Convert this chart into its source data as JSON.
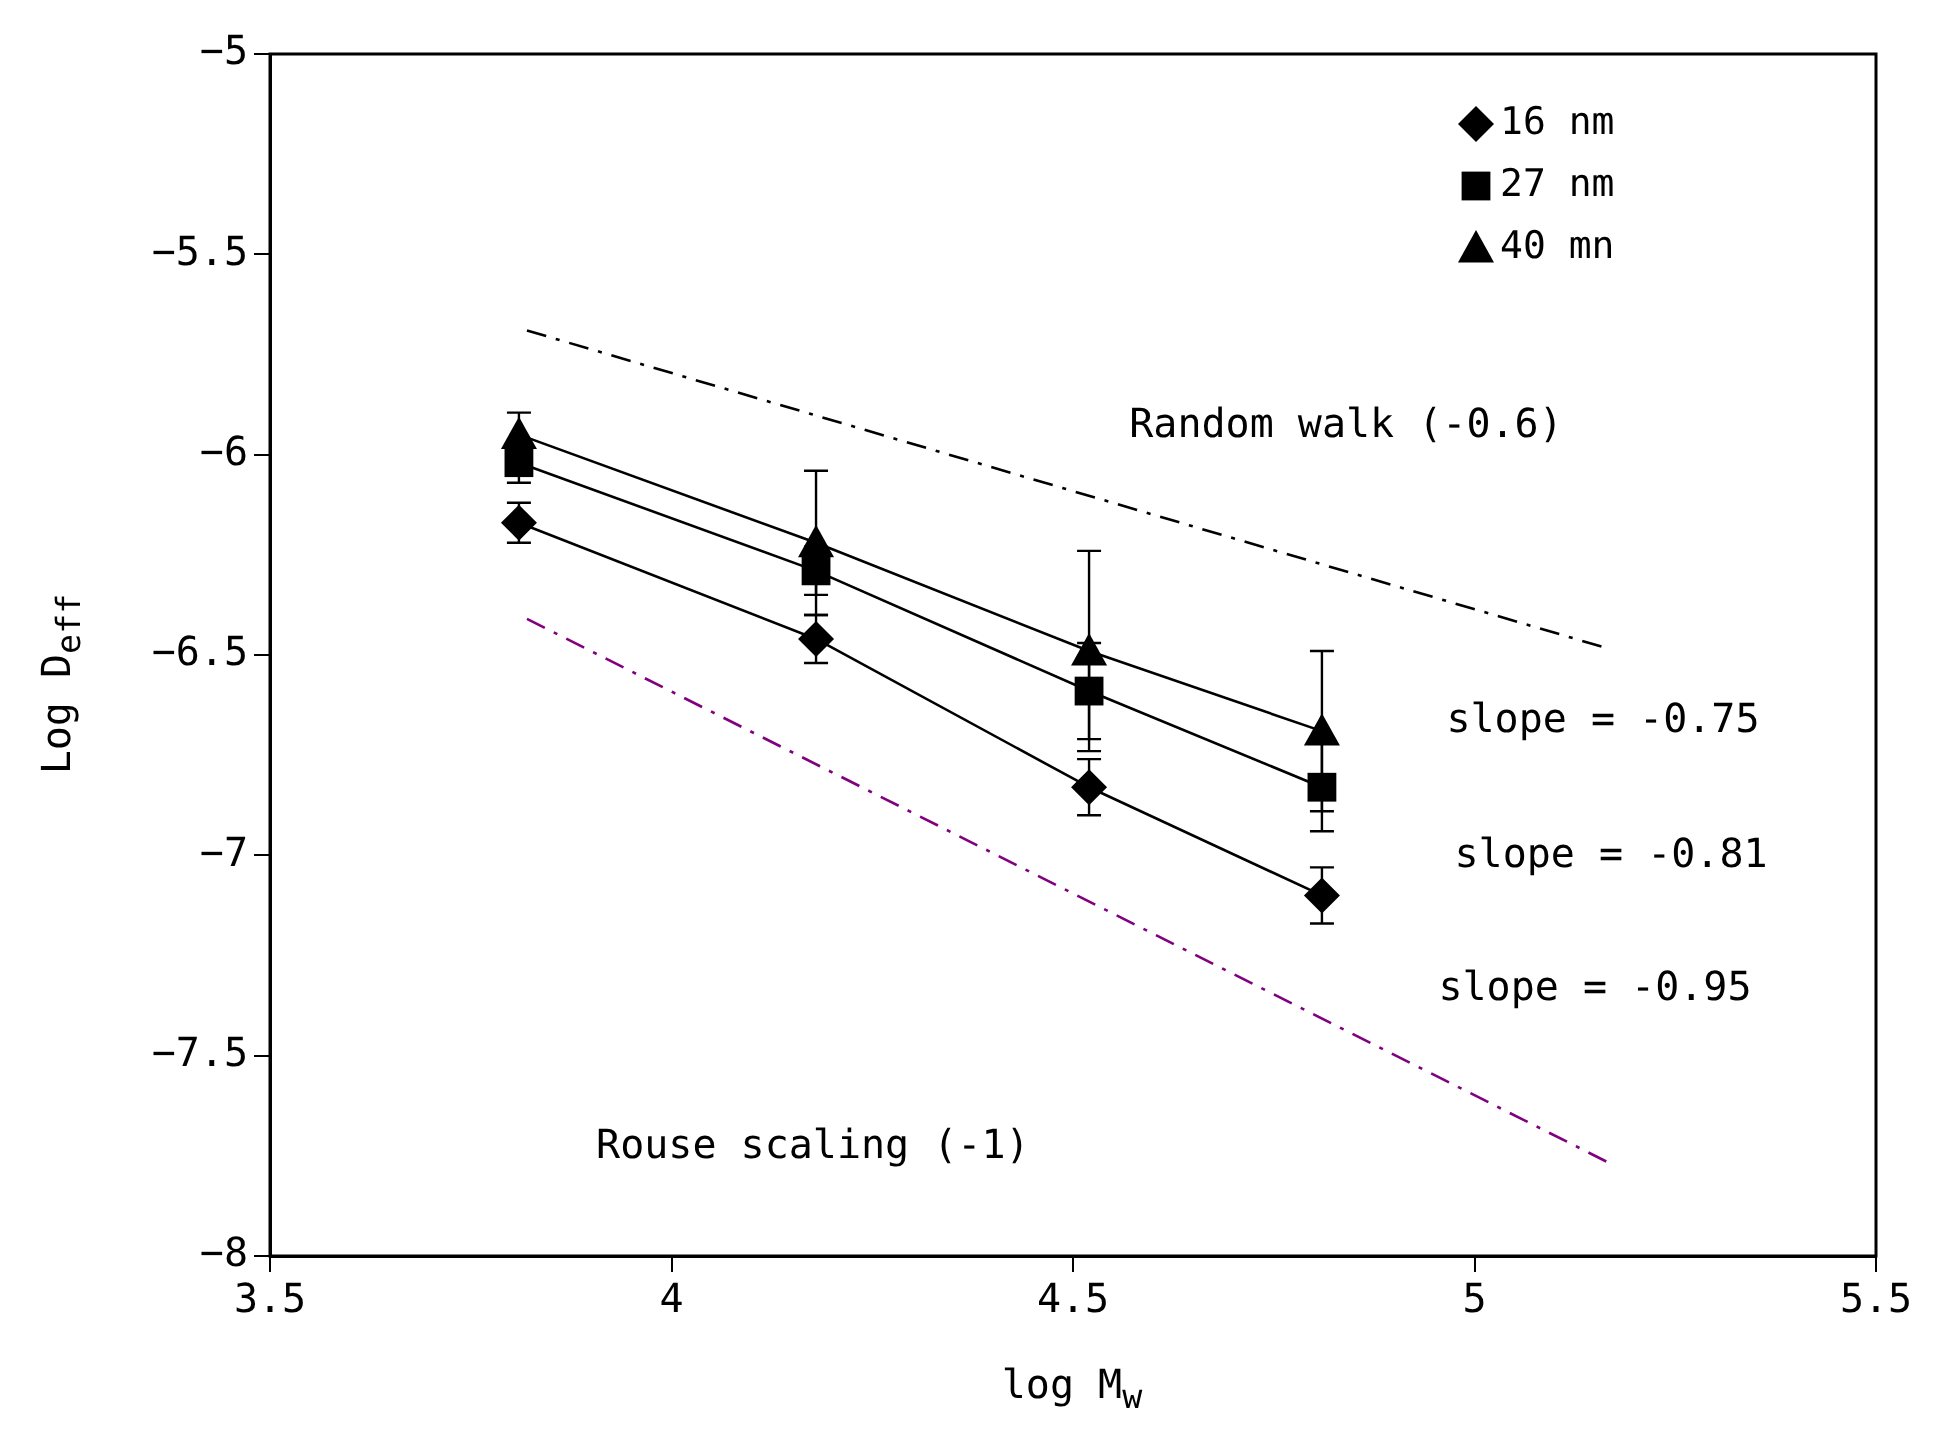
{
  "chart_data": {
    "type": "line",
    "xlabel": "log M$_{w}$",
    "ylabel": "Log D$_{eff}$",
    "xlim": [
      3.5,
      5.5
    ],
    "xticks": [
      3.5,
      4,
      4.5,
      5,
      5.5
    ],
    "ylim": [
      -8,
      -5
    ],
    "yticks": [
      -8,
      -7.5,
      -7,
      -6.5,
      -6,
      -5.5,
      -5
    ],
    "grid": false,
    "legend": "top right",
    "series": [
      {
        "name": "16 nm",
        "color": "#000000",
        "marker": "diamond",
        "x": [
          3.81,
          4.18,
          4.52,
          4.81
        ],
        "values": [
          -6.17,
          -6.46,
          -6.83,
          -7.1
        ],
        "errors": [
          0.05,
          0.06,
          0.07,
          0.07
        ]
      },
      {
        "name": "27 nm",
        "color": "#000000",
        "marker": "square",
        "x": [
          3.81,
          4.18,
          4.52,
          4.81
        ],
        "values": [
          -6.02,
          -6.29,
          -6.59,
          -6.83
        ],
        "errors": [
          0.05,
          0.06,
          0.12,
          0.11
        ]
      },
      {
        "name": "40 mn",
        "color": "#000000",
        "marker": "triangle",
        "x": [
          3.81,
          4.18,
          4.52,
          4.81
        ],
        "values": [
          -5.95,
          -6.22,
          -6.49,
          -6.69
        ],
        "errors": [
          0.055,
          0.18,
          0.25,
          0.2
        ]
      },
      {
        "type": "line",
        "color": "#000000",
        "marker": "none",
        "line_style": "dashed",
        "x": [
          3.82,
          5.16
        ],
        "values": [
          -5.69,
          -6.48
        ]
      },
      {
        "type": "line",
        "color": "#800080",
        "marker": "none",
        "line_style": "dashed",
        "x": [
          3.82,
          5.17
        ],
        "values": [
          -6.41,
          -7.77
        ]
      }
    ],
    "annotations": [
      "Random walk (-0.6)",
      "slope = -0.75",
      "slope = -0.81",
      "slope = -0.95",
      "Rouse scaling (-1)"
    ]
  }
}
